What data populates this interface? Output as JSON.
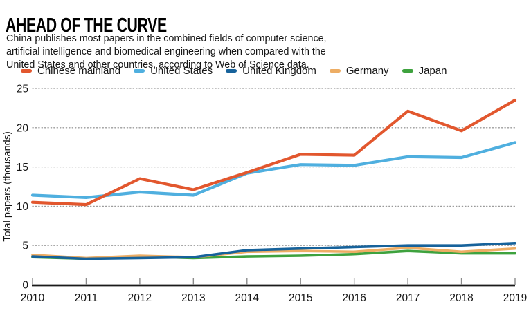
{
  "header": {
    "title": "AHEAD OF THE CURVE",
    "subtitle": "China publishes most papers in the combined fields of computer science,\nartificial intelligence and biomedical engineering when compared with the\nUnited States and other countries, according to Web of Science data."
  },
  "legend": {
    "items": [
      {
        "label": "Chinese mainland",
        "color": "#e2572e"
      },
      {
        "label": "United States",
        "color": "#4fafdf"
      },
      {
        "label": "United Kingdom",
        "color": "#16629b"
      },
      {
        "label": "Germany",
        "color": "#edad64"
      },
      {
        "label": "Japan",
        "color": "#3ea23e"
      }
    ]
  },
  "chart_data": {
    "type": "line",
    "title": "AHEAD OF THE CURVE",
    "xlabel": "",
    "ylabel": "Total papers (thousands)",
    "x": [
      2010,
      2011,
      2012,
      2013,
      2014,
      2015,
      2016,
      2017,
      2018,
      2019
    ],
    "series": [
      {
        "name": "Chinese mainland",
        "color": "#e2572e",
        "values": [
          10.5,
          10.2,
          13.5,
          12.1,
          14.3,
          16.6,
          16.5,
          22.1,
          19.6,
          23.5
        ]
      },
      {
        "name": "United States",
        "color": "#4fafdf",
        "values": [
          11.4,
          11.1,
          11.8,
          11.4,
          14.2,
          15.3,
          15.2,
          16.3,
          16.2,
          18.1
        ]
      },
      {
        "name": "United Kingdom",
        "color": "#16629b",
        "values": [
          3.6,
          3.3,
          3.4,
          3.5,
          4.4,
          4.6,
          4.8,
          5.0,
          5.0,
          5.3
        ]
      },
      {
        "name": "Germany",
        "color": "#edad64",
        "values": [
          3.8,
          3.4,
          3.7,
          3.5,
          4.2,
          4.3,
          4.2,
          4.7,
          4.2,
          4.6
        ]
      },
      {
        "name": "Japan",
        "color": "#3ea23e",
        "values": [
          3.5,
          3.3,
          3.6,
          3.4,
          3.6,
          3.7,
          3.9,
          4.3,
          4.0,
          4.0
        ]
      }
    ],
    "yticks": [
      0,
      5,
      10,
      15,
      20,
      25
    ],
    "ylim": [
      0,
      25
    ],
    "grid": "dotted-horizontal",
    "legend_position": "top",
    "colors": {
      "axis": "#1a1a1a",
      "tick": "#8a8a8a",
      "gridline": "#9a9a9a",
      "tick_label": "#161616"
    }
  }
}
